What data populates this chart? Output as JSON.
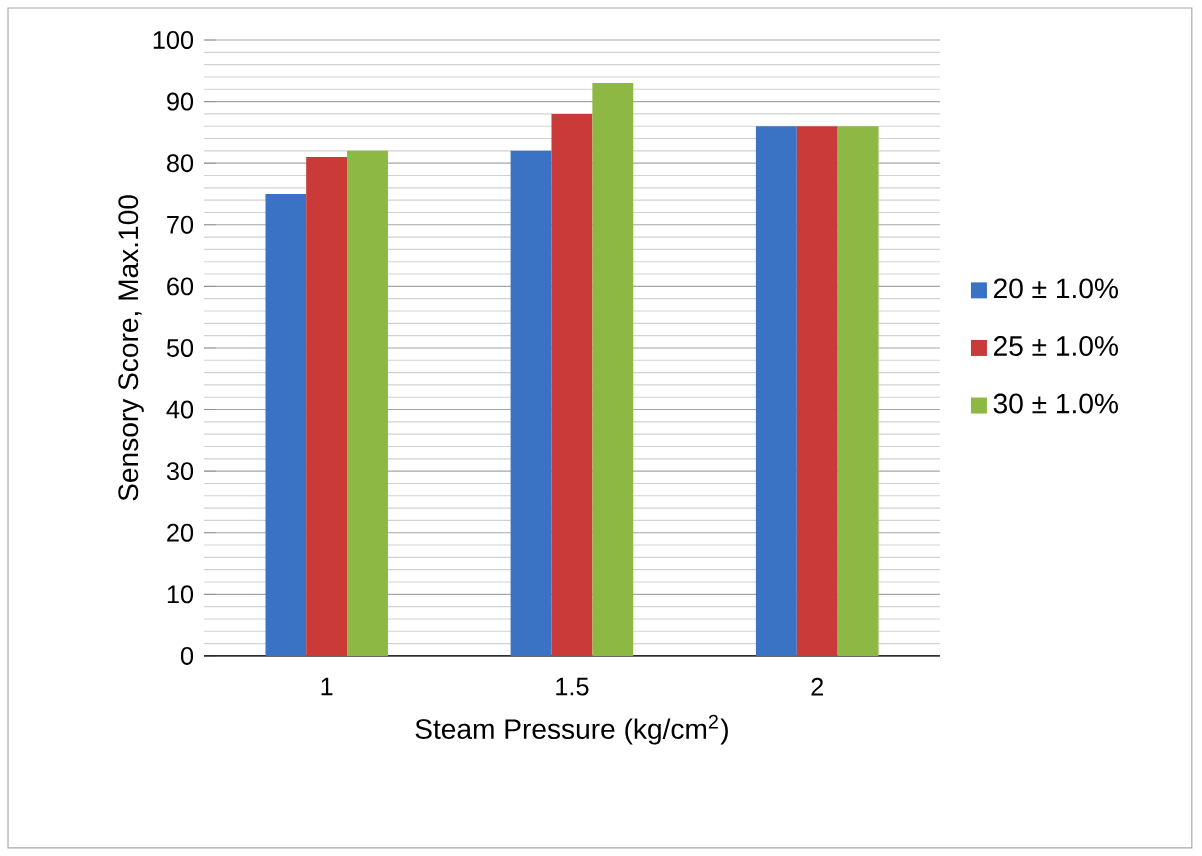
{
  "chart_data": {
    "type": "bar",
    "categories": [
      "1",
      "1.5",
      "2"
    ],
    "series": [
      {
        "name": "20 ± 1.0%",
        "color": "#3a73c4",
        "values": [
          75,
          82,
          86
        ]
      },
      {
        "name": "25 ± 1.0%",
        "color": "#c93a38",
        "values": [
          81,
          88,
          86
        ]
      },
      {
        "name": "30 ± 1.0%",
        "color": "#8db843",
        "values": [
          82,
          93,
          86
        ]
      }
    ],
    "xlabel": "Steam Pressure (kg/cm$^{2}$)",
    "ylabel": "Sensory Score, Max.100",
    "ylim": [
      0,
      100
    ],
    "yticks": [
      0,
      10,
      20,
      30,
      40,
      50,
      60,
      70,
      80,
      90,
      100
    ],
    "grid": "y",
    "legend": "right"
  }
}
